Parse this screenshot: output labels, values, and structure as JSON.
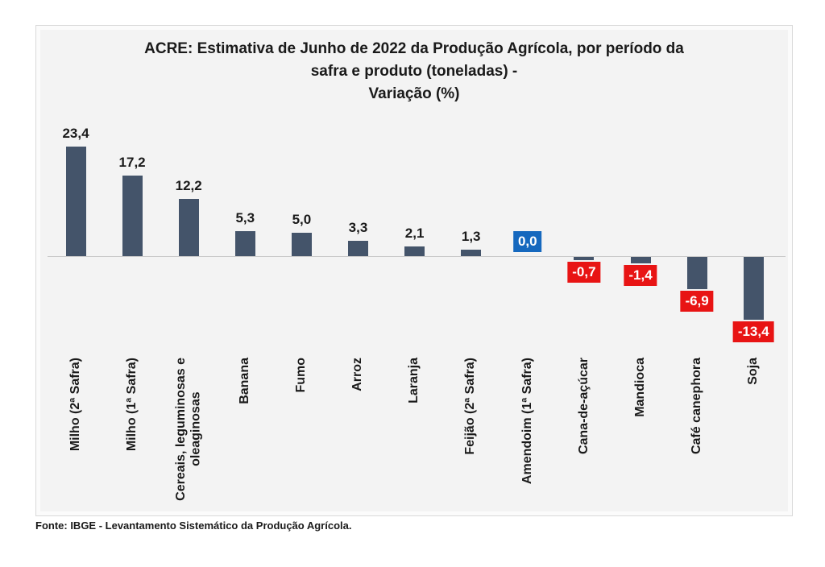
{
  "chart_data": {
    "type": "bar",
    "title": "ACRE: Estimativa de Junho de 2022 da Produção Agrícola, por período da\nsafra e produto (toneladas) -\nVariação (%)",
    "source": "Fonte: IBGE - Levantamento Sistemático da Produção Agrícola.",
    "unit": "%",
    "categories": [
      "Milho (2ª Safra)",
      "Milho (1ª Safra)",
      "Cereais, leguminosas e\noleaginosas",
      "Banana",
      "Fumo",
      "Arroz",
      "Laranja",
      "Feijão (2ª Safra)",
      "Amendoim (1ª Safra)",
      "Cana-de-açúcar",
      "Mandioca",
      "Café canephora",
      "Soja"
    ],
    "values": [
      23.4,
      17.2,
      12.2,
      5.3,
      5.0,
      3.3,
      2.1,
      1.3,
      0.0,
      -0.7,
      -1.4,
      -6.9,
      -13.4
    ],
    "value_labels": [
      "23,4",
      "17,2",
      "12,2",
      "5,3",
      "5,0",
      "3,3",
      "2,1",
      "1,3",
      "0,0",
      "-0,7",
      "-1,4",
      "-6,9",
      "-13,4"
    ],
    "ylim": [
      -15,
      25
    ],
    "grid": false,
    "legend": false,
    "colors": {
      "bar": "#44546A",
      "positive_label_text": "#1a1a1a",
      "zero_badge_bg": "#1568BE",
      "negative_badge_bg": "#E81414",
      "badge_text": "#ffffff",
      "axis_line": "#c9c9c9",
      "plot_bg": "#f3f3f3",
      "page_bg": "#ffffff"
    }
  }
}
